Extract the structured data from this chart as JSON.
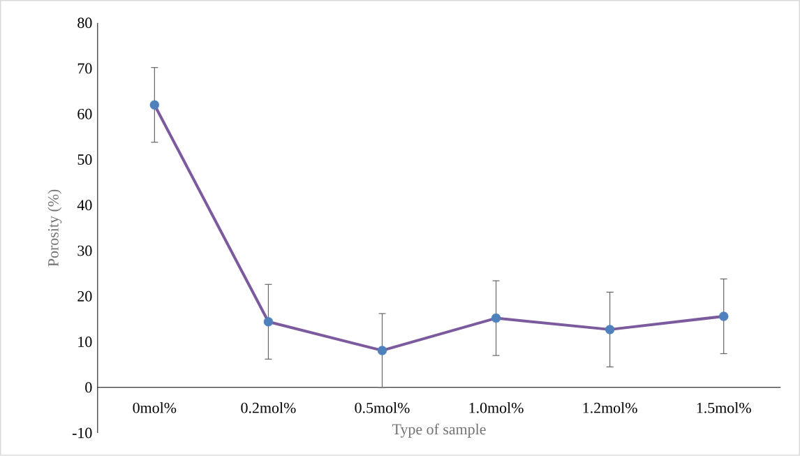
{
  "chart_data": {
    "type": "line",
    "xlabel": "Type of sample",
    "ylabel": "Porosity (%)",
    "categories": [
      "0mol%",
      "0.2mol%",
      "0.5mol%",
      "1.0mol%",
      "1.2mol%",
      "1.5mol%"
    ],
    "series": [
      {
        "color": "#7b5b9e",
        "colors": [
          "#4f81bd",
          "#4f81bd",
          "#4f81bd",
          "#4f81bd",
          "#4f81bd",
          "#4f81bd"
        ],
        "values": [
          62,
          14.4,
          8.1,
          15.2,
          12.7,
          15.6
        ],
        "errors": [
          8.2,
          8.2,
          8.1,
          8.2,
          8.2,
          8.2
        ]
      }
    ],
    "marker": "circle",
    "line_style": "solid",
    "ylim": [
      -10,
      80
    ],
    "yticks": [
      -10,
      0,
      10,
      20,
      30,
      40,
      50,
      60,
      70,
      80
    ]
  }
}
